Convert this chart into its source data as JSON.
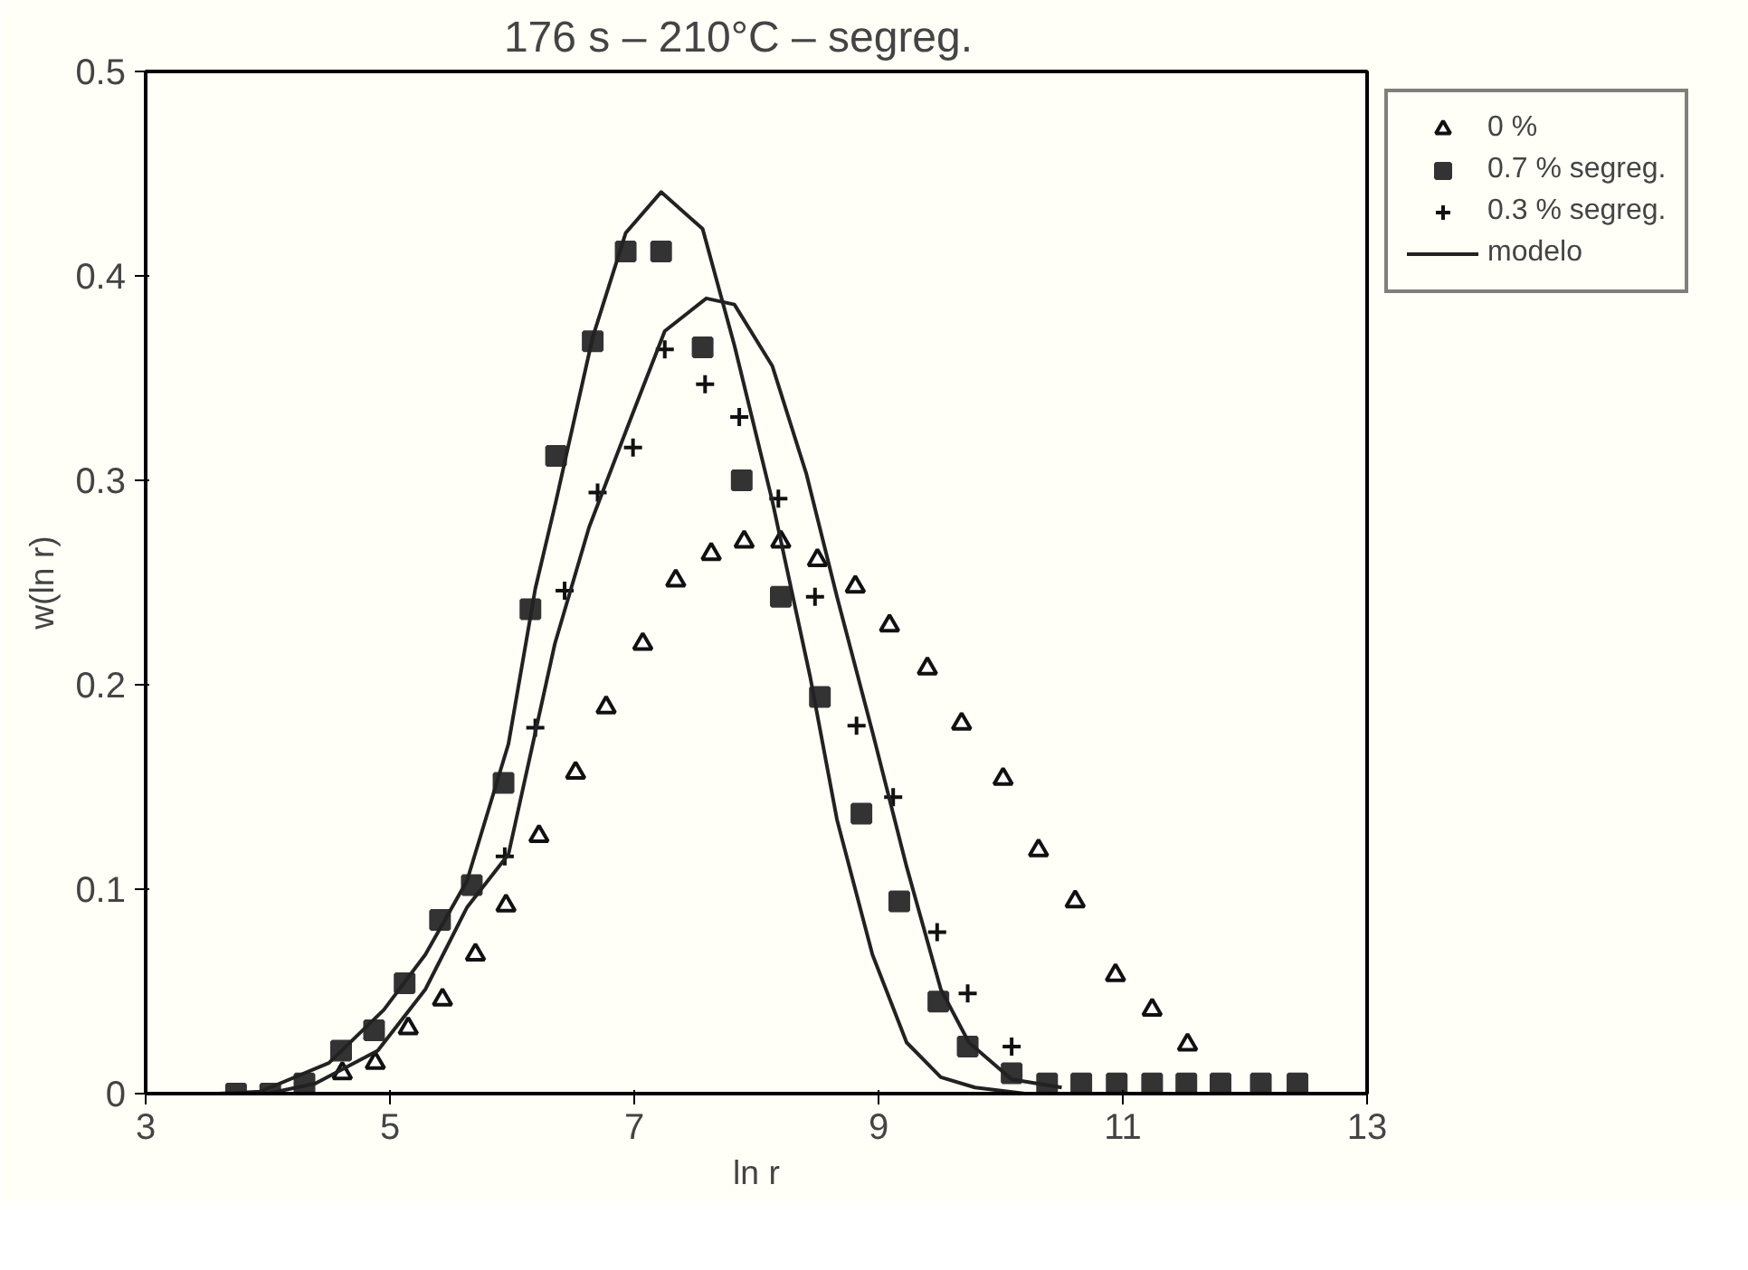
{
  "chart_data": {
    "type": "scatter",
    "title": "176 s  –  210°C  – segreg.",
    "xlabel": "ln r",
    "ylabel": "w(ln r)",
    "xlim": [
      3,
      13
    ],
    "ylim": [
      0,
      0.5
    ],
    "xticks": [
      3,
      5,
      7,
      9,
      11,
      13
    ],
    "yticks": [
      {
        "value": 0,
        "label": "0"
      },
      0.1,
      0.2,
      0.3,
      0.4,
      0.5
    ],
    "grid": false,
    "legend": "top right",
    "series": [
      {
        "name": "0 %",
        "color": "#111111",
        "marker": "triangle",
        "x": [
          4.61,
          4.88,
          5.15,
          5.43,
          5.7,
          5.95,
          6.22,
          6.52,
          6.77,
          7.07,
          7.34,
          7.63,
          7.9,
          8.2,
          8.5,
          8.81,
          9.09,
          9.4,
          9.68,
          10.02,
          10.31,
          10.61,
          10.94,
          11.24,
          11.53
        ],
        "values": [
          0.01,
          0.015,
          0.032,
          0.046,
          0.068,
          0.092,
          0.126,
          0.157,
          0.189,
          0.22,
          0.251,
          0.264,
          0.27,
          0.27,
          0.261,
          0.248,
          0.229,
          0.208,
          0.181,
          0.154,
          0.119,
          0.094,
          0.058,
          0.041,
          0.024
        ]
      },
      {
        "name": "0.7 % segreg.",
        "color": "#333333",
        "marker": "square",
        "x": [
          3.74,
          4.02,
          4.3,
          4.6,
          4.87,
          5.12,
          5.41,
          5.67,
          5.93,
          6.15,
          6.36,
          6.66,
          6.93,
          7.22,
          7.56,
          7.88,
          8.2,
          8.52,
          8.86,
          9.17,
          9.49,
          9.73,
          10.09,
          10.38,
          10.66,
          10.95,
          11.24,
          11.52,
          11.8,
          12.13,
          12.43
        ],
        "values": [
          0,
          0,
          0.005,
          0.021,
          0.031,
          0.054,
          0.085,
          0.102,
          0.152,
          0.237,
          0.312,
          0.368,
          0.412,
          0.412,
          0.365,
          0.3,
          0.243,
          0.194,
          0.137,
          0.094,
          0.045,
          0.023,
          0.01,
          0.005,
          0.005,
          0.005,
          0.005,
          0.005,
          0.005,
          0.005,
          0.005
        ]
      },
      {
        "name": "0.3 % segreg.",
        "color": "#111111",
        "marker": "cross",
        "x": [
          5.94,
          6.19,
          6.43,
          6.7,
          6.99,
          7.25,
          7.58,
          7.86,
          8.18,
          8.48,
          8.82,
          9.12,
          9.48,
          9.73,
          10.09
        ],
        "values": [
          0.116,
          0.179,
          0.246,
          0.294,
          0.316,
          0.364,
          0.347,
          0.331,
          0.291,
          0.243,
          0.18,
          0.145,
          0.079,
          0.049,
          0.023
        ]
      },
      {
        "name": "modelo",
        "type": "line",
        "color": "#222222",
        "marker": "none",
        "x": [
          3.6,
          3.94,
          4.5,
          4.95,
          5.29,
          5.63,
          5.97,
          6.19,
          6.36,
          6.66,
          6.93,
          7.22,
          7.56,
          7.82,
          8.13,
          8.44,
          8.66,
          8.95,
          9.23,
          9.51,
          9.79,
          10.2
        ],
        "values": [
          0,
          0.001,
          0.015,
          0.041,
          0.068,
          0.104,
          0.171,
          0.247,
          0.29,
          0.37,
          0.421,
          0.441,
          0.423,
          0.366,
          0.29,
          0.204,
          0.134,
          0.068,
          0.025,
          0.008,
          0.003,
          0
        ]
      },
      {
        "type": "line",
        "color": "#222222",
        "marker": "none",
        "x": [
          4.0,
          4.39,
          4.9,
          5.29,
          5.63,
          5.97,
          6.35,
          6.63,
          6.97,
          7.25,
          7.59,
          7.82,
          8.13,
          8.41,
          8.66,
          8.95,
          9.23,
          9.51,
          9.74,
          10.09,
          10.5
        ],
        "values": [
          0,
          0.005,
          0.021,
          0.051,
          0.091,
          0.117,
          0.22,
          0.277,
          0.33,
          0.373,
          0.389,
          0.386,
          0.356,
          0.303,
          0.243,
          0.177,
          0.111,
          0.051,
          0.025,
          0.007,
          0.003
        ]
      }
    ]
  }
}
